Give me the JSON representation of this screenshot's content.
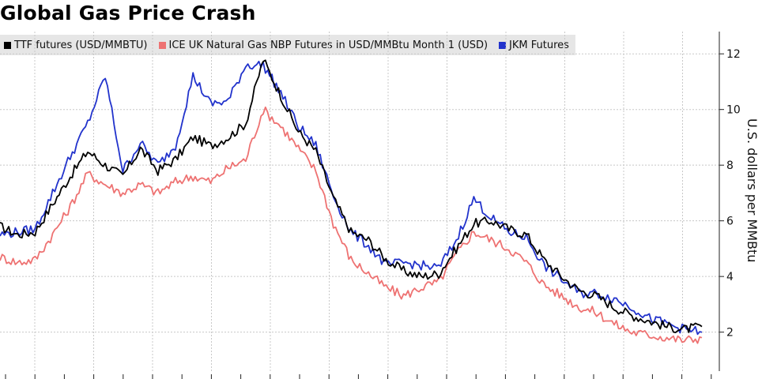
{
  "title": "Global Gas Price Crash",
  "chart_data": {
    "type": "line",
    "title": "Global Gas Price Crash",
    "ylabel": "U.S. dollars per MMBtu",
    "xlabel": "",
    "ylim": [
      0.6,
      12.8
    ],
    "yticks": [
      2,
      4,
      6,
      8,
      10,
      12
    ],
    "y_axis_side": "right",
    "grid": true,
    "legend_position": "top-left",
    "x": [
      0,
      3,
      6,
      9,
      12,
      15,
      18,
      21,
      24,
      27,
      30,
      33,
      36,
      39,
      42,
      45,
      48,
      51,
      54,
      57,
      60,
      63,
      66,
      69,
      72,
      75,
      78,
      81,
      84,
      87,
      90,
      93,
      96,
      99,
      102,
      105,
      108,
      111,
      114,
      117,
      120
    ],
    "series": [
      {
        "name": "TTF futures (USD/MMBTU)",
        "color": "#000000",
        "values": [
          5.8,
          5.5,
          5.6,
          6.6,
          7.6,
          8.5,
          8.0,
          7.6,
          8.6,
          7.8,
          8.2,
          9.0,
          8.7,
          9.0,
          9.5,
          11.8,
          10.5,
          9.2,
          8.5,
          6.8,
          5.6,
          5.3,
          4.6,
          4.2,
          4.0,
          4.1,
          5.0,
          5.9,
          6.0,
          5.7,
          5.5,
          4.6,
          4.0,
          3.5,
          3.3,
          2.9,
          2.6,
          2.4,
          2.2,
          2.1,
          2.2
        ]
      },
      {
        "name": "ICE UK Natural Gas NBP Futures in USD/MMBtu Month 1 (USD)",
        "color": "#ee7272",
        "values": [
          4.7,
          4.5,
          4.6,
          5.5,
          6.5,
          7.7,
          7.3,
          7.0,
          7.3,
          7.0,
          7.4,
          7.6,
          7.4,
          7.9,
          8.2,
          10.0,
          9.4,
          8.6,
          7.8,
          5.9,
          4.6,
          4.1,
          3.6,
          3.3,
          3.6,
          3.8,
          4.8,
          5.6,
          5.3,
          5.0,
          4.5,
          3.7,
          3.3,
          2.9,
          2.7,
          2.3,
          2.0,
          1.9,
          1.8,
          1.7,
          1.8
        ]
      },
      {
        "name": "JKM Futures",
        "color": "#2233cc",
        "values": [
          5.5,
          5.6,
          5.7,
          7.0,
          8.3,
          9.5,
          11.2,
          7.8,
          8.8,
          8.0,
          8.7,
          11.2,
          10.2,
          10.3,
          11.6,
          11.6,
          10.6,
          9.4,
          8.7,
          6.9,
          5.6,
          5.1,
          4.4,
          4.5,
          4.4,
          4.3,
          5.3,
          6.8,
          6.1,
          5.6,
          5.4,
          4.4,
          3.9,
          3.4,
          3.4,
          3.2,
          2.9,
          2.5,
          2.3,
          2.1,
          2.0
        ]
      }
    ]
  },
  "colors": {
    "TTF": "#000000",
    "NBP": "#ee7272",
    "JKM": "#2233cc",
    "grid": "#c8c8c8",
    "legend_bg": "#e6e6e6"
  }
}
